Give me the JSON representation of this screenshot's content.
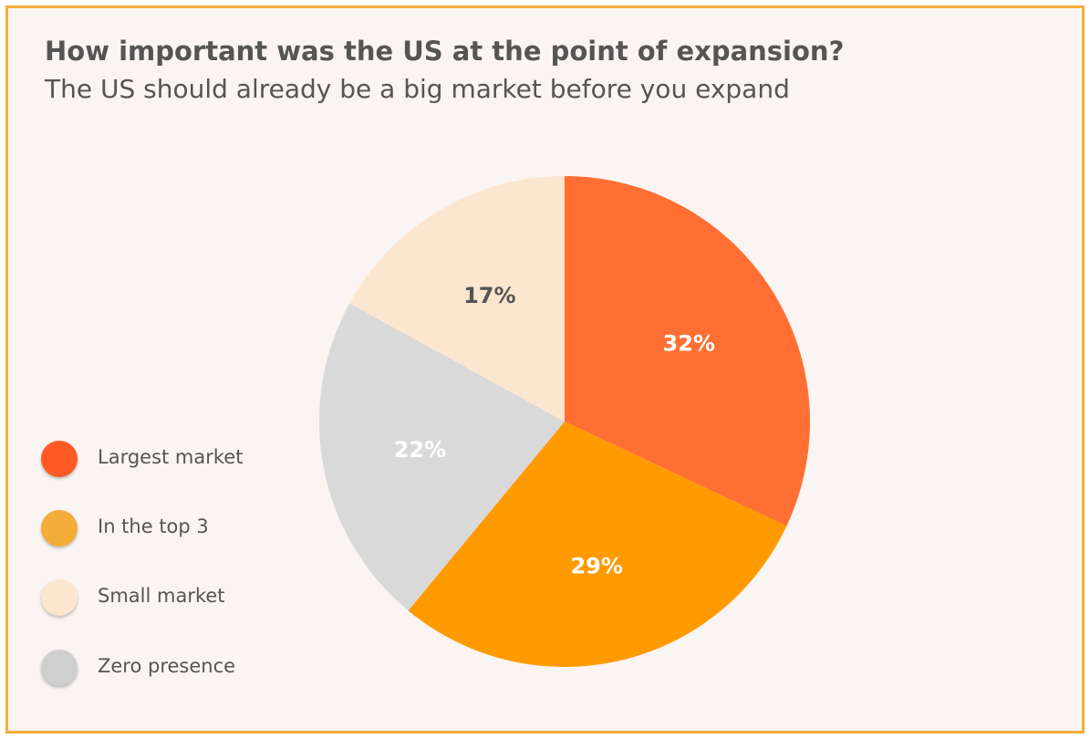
{
  "chart_data": {
    "type": "pie",
    "title": "How important was the US at the point of expansion?",
    "subtitle": "The US should already be a big market before you expand",
    "legend_position": "left",
    "slices": [
      {
        "label": "Largest market",
        "value": 32,
        "display": "32%",
        "color": "#ff6f33",
        "label_color": "#ffffff"
      },
      {
        "label": "In the top 3",
        "value": 29,
        "display": "29%",
        "color": "#ff9a00",
        "label_color": "#ffffff"
      },
      {
        "label": "Zero presence",
        "value": 22,
        "display": "22%",
        "color": "#d9d9d9",
        "label_color": "#ffffff"
      },
      {
        "label": "Small market",
        "value": 17,
        "display": "17%",
        "color": "#fde6cf",
        "label_color": "#555555"
      }
    ],
    "legend": [
      {
        "label": "Largest market",
        "color": "#ff5a26"
      },
      {
        "label": "In the top 3",
        "color": "#f4ac38"
      },
      {
        "label": "Small market",
        "color": "#fde6cf"
      },
      {
        "label": "Zero presence",
        "color": "#cfcfcf"
      }
    ]
  }
}
